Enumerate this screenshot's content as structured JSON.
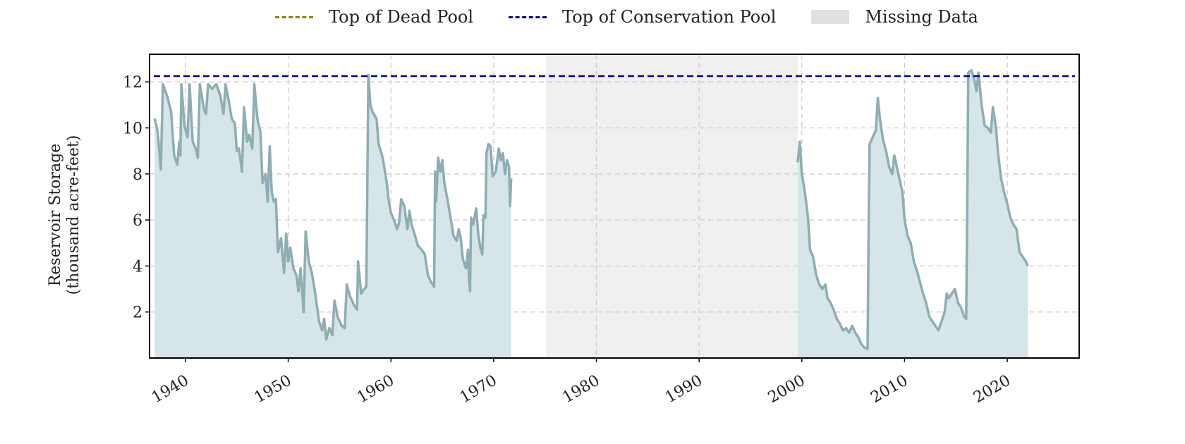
{
  "legend": {
    "dead_pool_label": "Top of Dead Pool",
    "conservation_label": "Top of Conservation Pool",
    "missing_label": "Missing Data",
    "dead_pool_color": "#8b8000",
    "conservation_color": "#00008b",
    "missing_color": "#e0e0e0"
  },
  "ylabel_line1": "Reservoir Storage",
  "ylabel_line2": "(thousand acre-feet)",
  "chart_data": {
    "type": "area",
    "ylabel": "Reservoir Storage (thousand acre-feet)",
    "xlim": [
      1936.5,
      2027.0
    ],
    "ylim": [
      0,
      13.2
    ],
    "x_ticks": [
      1940,
      1950,
      1960,
      1970,
      1980,
      1990,
      2000,
      2010,
      2020
    ],
    "x_tick_labels": [
      "1940",
      "1950",
      "1960",
      "1970",
      "1980",
      "1990",
      "2000",
      "2010",
      "2020"
    ],
    "y_ticks": [
      2,
      4,
      6,
      8,
      10,
      12
    ],
    "y_tick_labels": [
      "2",
      "4",
      "6",
      "8",
      "10",
      "12"
    ],
    "grid": true,
    "legend_position": "top-center",
    "line_color": "#8fadb3",
    "fill_color": "#d5e5e8",
    "conservation_pool": 12.25,
    "missing_periods": [
      [
        1975.1,
        1999.6
      ]
    ],
    "series": [
      {
        "points": [
          [
            1937.0,
            10.4
          ],
          [
            1937.3,
            9.8
          ],
          [
            1937.6,
            8.2
          ],
          [
            1937.8,
            11.9
          ],
          [
            1938.2,
            11.4
          ],
          [
            1938.6,
            10.7
          ],
          [
            1938.9,
            8.8
          ],
          [
            1939.2,
            8.4
          ],
          [
            1939.4,
            9.4
          ],
          [
            1939.5,
            8.8
          ],
          [
            1939.6,
            11.9
          ],
          [
            1939.9,
            10.1
          ],
          [
            1940.2,
            9.6
          ],
          [
            1940.4,
            11.9
          ],
          [
            1940.7,
            9.4
          ],
          [
            1941.0,
            9.1
          ],
          [
            1941.2,
            8.7
          ],
          [
            1941.4,
            11.9
          ],
          [
            1941.8,
            10.8
          ],
          [
            1942.0,
            10.6
          ],
          [
            1942.2,
            11.9
          ],
          [
            1942.6,
            11.7
          ],
          [
            1943.0,
            11.9
          ],
          [
            1943.4,
            11.4
          ],
          [
            1943.7,
            10.6
          ],
          [
            1943.9,
            11.9
          ],
          [
            1944.2,
            11.2
          ],
          [
            1944.5,
            10.4
          ],
          [
            1944.8,
            10.2
          ],
          [
            1945.0,
            9.0
          ],
          [
            1945.2,
            9.1
          ],
          [
            1945.5,
            8.1
          ],
          [
            1945.7,
            10.9
          ],
          [
            1946.0,
            9.4
          ],
          [
            1946.2,
            9.7
          ],
          [
            1946.5,
            9.1
          ],
          [
            1946.7,
            11.9
          ],
          [
            1947.0,
            10.4
          ],
          [
            1947.3,
            9.8
          ],
          [
            1947.5,
            7.6
          ],
          [
            1947.8,
            8.0
          ],
          [
            1948.0,
            6.8
          ],
          [
            1948.2,
            9.2
          ],
          [
            1948.4,
            7.2
          ],
          [
            1948.6,
            6.8
          ],
          [
            1948.8,
            6.9
          ],
          [
            1949.0,
            4.6
          ],
          [
            1949.3,
            5.2
          ],
          [
            1949.6,
            3.7
          ],
          [
            1949.8,
            5.4
          ],
          [
            1950.0,
            4.2
          ],
          [
            1950.2,
            4.8
          ],
          [
            1950.5,
            3.9
          ],
          [
            1950.8,
            3.6
          ],
          [
            1951.0,
            2.9
          ],
          [
            1951.2,
            3.9
          ],
          [
            1951.5,
            2.0
          ],
          [
            1951.7,
            5.5
          ],
          [
            1952.0,
            4.2
          ],
          [
            1952.3,
            3.7
          ],
          [
            1952.6,
            2.9
          ],
          [
            1953.0,
            1.6
          ],
          [
            1953.3,
            1.2
          ],
          [
            1953.5,
            1.7
          ],
          [
            1953.7,
            0.8
          ],
          [
            1954.0,
            1.3
          ],
          [
            1954.3,
            1.0
          ],
          [
            1954.5,
            2.5
          ],
          [
            1954.8,
            1.8
          ],
          [
            1955.2,
            1.4
          ],
          [
            1955.5,
            1.3
          ],
          [
            1955.7,
            3.2
          ],
          [
            1956.0,
            2.7
          ],
          [
            1956.4,
            2.3
          ],
          [
            1956.7,
            2.1
          ],
          [
            1956.8,
            4.2
          ],
          [
            1957.1,
            2.8
          ],
          [
            1957.4,
            3.0
          ],
          [
            1957.6,
            3.1
          ],
          [
            1957.7,
            7.5
          ],
          [
            1957.8,
            12.3
          ],
          [
            1958.0,
            11.0
          ],
          [
            1958.2,
            10.7
          ],
          [
            1958.6,
            10.4
          ],
          [
            1958.8,
            9.3
          ],
          [
            1959.2,
            8.7
          ],
          [
            1959.6,
            7.6
          ],
          [
            1959.8,
            6.8
          ],
          [
            1960.0,
            6.3
          ],
          [
            1960.3,
            6.0
          ],
          [
            1960.6,
            5.6
          ],
          [
            1960.8,
            5.9
          ],
          [
            1961.0,
            6.9
          ],
          [
            1961.3,
            6.6
          ],
          [
            1961.6,
            5.6
          ],
          [
            1961.8,
            6.4
          ],
          [
            1962.0,
            5.8
          ],
          [
            1962.3,
            5.4
          ],
          [
            1962.6,
            4.9
          ],
          [
            1963.0,
            4.7
          ],
          [
            1963.3,
            4.5
          ],
          [
            1963.6,
            3.6
          ],
          [
            1963.9,
            3.3
          ],
          [
            1964.2,
            3.1
          ],
          [
            1964.3,
            8.1
          ],
          [
            1964.4,
            6.8
          ],
          [
            1964.6,
            8.7
          ],
          [
            1964.8,
            8.1
          ],
          [
            1965.0,
            8.6
          ],
          [
            1965.2,
            7.6
          ],
          [
            1965.5,
            6.9
          ],
          [
            1965.8,
            6.1
          ],
          [
            1966.1,
            5.3
          ],
          [
            1966.4,
            5.1
          ],
          [
            1966.6,
            5.6
          ],
          [
            1966.8,
            5.2
          ],
          [
            1967.0,
            4.3
          ],
          [
            1967.3,
            3.9
          ],
          [
            1967.5,
            4.7
          ],
          [
            1967.6,
            3.5
          ],
          [
            1967.7,
            2.9
          ],
          [
            1967.8,
            6.1
          ],
          [
            1968.0,
            5.8
          ],
          [
            1968.3,
            6.5
          ],
          [
            1968.5,
            5.4
          ],
          [
            1968.7,
            4.8
          ],
          [
            1968.9,
            4.5
          ],
          [
            1969.0,
            6.2
          ],
          [
            1969.2,
            6.1
          ],
          [
            1969.3,
            8.9
          ],
          [
            1969.5,
            9.3
          ],
          [
            1969.7,
            9.2
          ],
          [
            1969.9,
            7.9
          ],
          [
            1970.2,
            8.1
          ],
          [
            1970.5,
            9.1
          ],
          [
            1970.7,
            8.6
          ],
          [
            1970.9,
            8.9
          ],
          [
            1971.1,
            8.0
          ],
          [
            1971.3,
            8.6
          ],
          [
            1971.5,
            8.3
          ],
          [
            1971.6,
            6.6
          ],
          [
            1971.7,
            7.8
          ]
        ]
      },
      {
        "points": [
          [
            1999.6,
            8.5
          ],
          [
            1999.8,
            9.4
          ],
          [
            2000.0,
            8.0
          ],
          [
            2000.3,
            7.2
          ],
          [
            2000.6,
            6.1
          ],
          [
            2000.8,
            4.7
          ],
          [
            2001.1,
            4.4
          ],
          [
            2001.4,
            3.6
          ],
          [
            2001.7,
            3.2
          ],
          [
            2002.0,
            3.0
          ],
          [
            2002.3,
            3.2
          ],
          [
            2002.5,
            2.6
          ],
          [
            2002.8,
            2.4
          ],
          [
            2003.1,
            2.1
          ],
          [
            2003.4,
            1.7
          ],
          [
            2003.7,
            1.5
          ],
          [
            2004.0,
            1.2
          ],
          [
            2004.3,
            1.3
          ],
          [
            2004.6,
            1.1
          ],
          [
            2004.9,
            1.4
          ],
          [
            2005.2,
            1.1
          ],
          [
            2005.5,
            0.9
          ],
          [
            2005.8,
            0.6
          ],
          [
            2006.1,
            0.45
          ],
          [
            2006.4,
            0.4
          ],
          [
            2006.5,
            5.5
          ],
          [
            2006.6,
            9.3
          ],
          [
            2006.9,
            9.6
          ],
          [
            2007.2,
            9.9
          ],
          [
            2007.4,
            11.3
          ],
          [
            2007.6,
            10.4
          ],
          [
            2007.9,
            9.5
          ],
          [
            2008.2,
            9.0
          ],
          [
            2008.5,
            8.3
          ],
          [
            2008.8,
            8.0
          ],
          [
            2009.0,
            8.8
          ],
          [
            2009.2,
            8.4
          ],
          [
            2009.5,
            7.8
          ],
          [
            2009.8,
            7.2
          ],
          [
            2010.0,
            6.0
          ],
          [
            2010.3,
            5.3
          ],
          [
            2010.6,
            5.0
          ],
          [
            2010.9,
            4.2
          ],
          [
            2011.2,
            3.8
          ],
          [
            2011.5,
            3.3
          ],
          [
            2011.8,
            2.8
          ],
          [
            2012.1,
            2.4
          ],
          [
            2012.4,
            1.8
          ],
          [
            2012.7,
            1.6
          ],
          [
            2013.0,
            1.4
          ],
          [
            2013.3,
            1.2
          ],
          [
            2013.6,
            1.6
          ],
          [
            2013.9,
            2.0
          ],
          [
            2014.1,
            2.8
          ],
          [
            2014.3,
            2.6
          ],
          [
            2014.6,
            2.8
          ],
          [
            2014.9,
            3.0
          ],
          [
            2015.2,
            2.4
          ],
          [
            2015.5,
            2.2
          ],
          [
            2015.8,
            1.8
          ],
          [
            2016.0,
            1.7
          ],
          [
            2016.1,
            6.5
          ],
          [
            2016.2,
            12.4
          ],
          [
            2016.5,
            12.5
          ],
          [
            2016.8,
            12.1
          ],
          [
            2017.0,
            11.6
          ],
          [
            2017.2,
            12.4
          ],
          [
            2017.5,
            11.0
          ],
          [
            2017.8,
            10.1
          ],
          [
            2018.1,
            10.0
          ],
          [
            2018.4,
            9.8
          ],
          [
            2018.6,
            10.9
          ],
          [
            2018.9,
            10.0
          ],
          [
            2019.1,
            8.9
          ],
          [
            2019.4,
            7.8
          ],
          [
            2019.7,
            7.2
          ],
          [
            2020.0,
            6.7
          ],
          [
            2020.3,
            6.1
          ],
          [
            2020.6,
            5.8
          ],
          [
            2020.9,
            5.6
          ],
          [
            2021.2,
            4.6
          ],
          [
            2021.5,
            4.4
          ],
          [
            2021.8,
            4.2
          ],
          [
            2022.0,
            4.0
          ]
        ]
      }
    ]
  }
}
